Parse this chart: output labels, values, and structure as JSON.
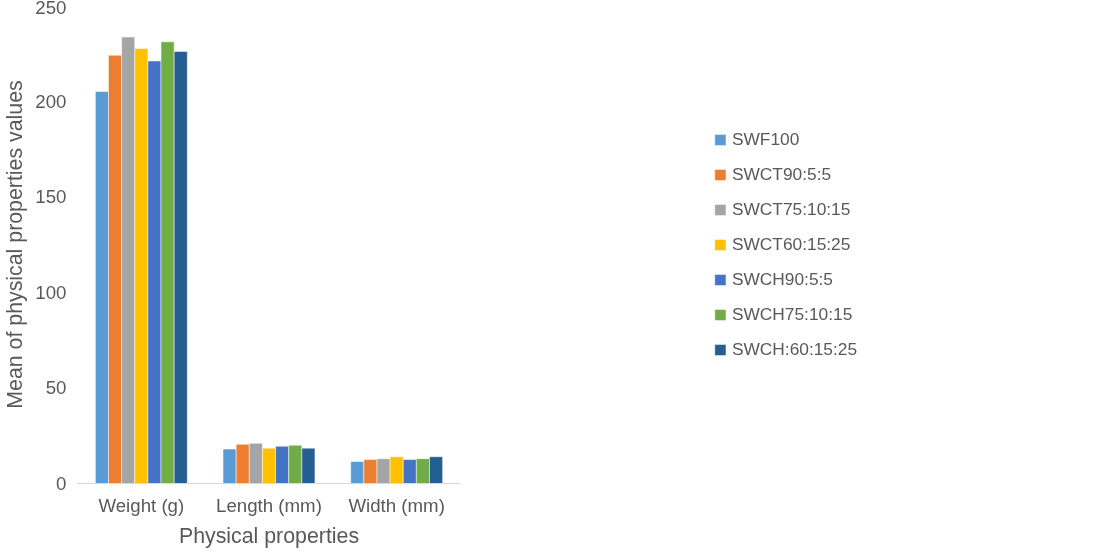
{
  "chart_data": {
    "type": "bar",
    "xlabel": "Physical properties",
    "ylabel": "Mean of physical properties values",
    "categories": [
      "Weight (g)",
      "Length (mm)",
      "Width (mm)"
    ],
    "series": [
      {
        "name": "SWF100",
        "color": "#5b9bd5",
        "values": [
          205,
          18,
          11.5
        ]
      },
      {
        "name": "SWCT90:5:5",
        "color": "#ed7d31",
        "values": [
          224,
          20.5,
          12.5
        ]
      },
      {
        "name": "SWCT75:10:15",
        "color": "#a5a5a5",
        "values": [
          233.5,
          21,
          13
        ]
      },
      {
        "name": "SWCT60:15:25",
        "color": "#ffc000",
        "values": [
          227.5,
          18.5,
          14
        ]
      },
      {
        "name": "SWCH90:5:5",
        "color": "#4472c4",
        "values": [
          221,
          19.5,
          12.5
        ]
      },
      {
        "name": "SWCH75:10:15",
        "color": "#70ad47",
        "values": [
          231,
          20,
          13
        ]
      },
      {
        "name": "SWCH:60:15:25",
        "color": "#255e91",
        "values": [
          226,
          18.5,
          14
        ]
      }
    ],
    "ylim": [
      0,
      250
    ],
    "yticks": [
      0,
      50,
      100,
      150,
      200,
      250
    ],
    "grid": false,
    "legend": "right"
  }
}
